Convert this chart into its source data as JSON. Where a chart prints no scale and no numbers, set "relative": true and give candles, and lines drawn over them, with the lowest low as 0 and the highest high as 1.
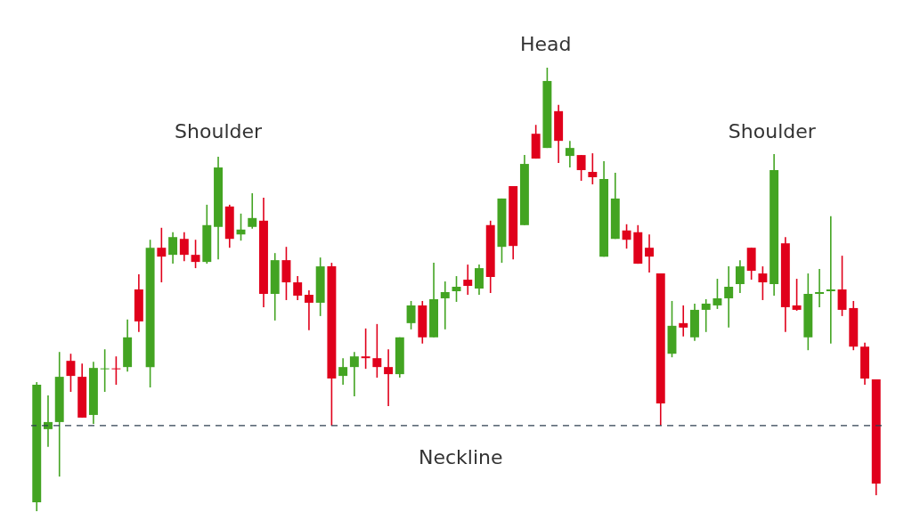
{
  "chart_data": {
    "type": "candlestick",
    "relative": true,
    "categories": [
      null,
      null,
      null,
      null,
      null,
      null,
      null,
      null,
      null,
      null,
      null,
      null,
      null,
      null,
      null,
      null,
      null,
      null,
      null,
      null,
      null,
      null,
      null,
      null,
      null,
      null,
      null,
      null,
      null,
      null,
      null,
      null,
      null,
      null,
      null,
      null,
      null,
      null,
      null,
      null,
      null,
      null,
      null,
      null,
      null,
      null,
      null,
      null,
      null,
      null,
      null,
      null,
      null,
      null,
      null,
      null,
      null,
      null,
      null,
      null,
      null,
      null,
      null,
      null,
      null,
      null,
      null,
      null,
      null,
      null,
      null,
      null,
      null,
      null,
      null
    ],
    "ohlc": [
      [
        0.02,
        0.291,
        0,
        0.285
      ],
      [
        0.185,
        0.261,
        0.145,
        0.201
      ],
      [
        0.201,
        0.359,
        0.078,
        0.303
      ],
      [
        0.339,
        0.355,
        0.269,
        0.305
      ],
      [
        0.303,
        0.333,
        0.211,
        0.211
      ],
      [
        0.217,
        0.337,
        0.197,
        0.323
      ],
      [
        0.32,
        0.365,
        0.269,
        0.322
      ],
      [
        0.322,
        0.349,
        0.285,
        0.32
      ],
      [
        0.325,
        0.432,
        0.315,
        0.392
      ],
      [
        0.5,
        0.534,
        0.404,
        0.428
      ],
      [
        0.325,
        0.612,
        0.279,
        0.594
      ],
      [
        0.594,
        0.639,
        0.516,
        0.574
      ],
      [
        0.578,
        0.629,
        0.558,
        0.618
      ],
      [
        0.614,
        0.629,
        0.564,
        0.578
      ],
      [
        0.578,
        0.612,
        0.548,
        0.562
      ],
      [
        0.562,
        0.691,
        0.558,
        0.645
      ],
      [
        0.641,
        0.799,
        0.568,
        0.775
      ],
      [
        0.687,
        0.691,
        0.594,
        0.614
      ],
      [
        0.624,
        0.671,
        0.61,
        0.635
      ],
      [
        0.641,
        0.717,
        0.637,
        0.661
      ],
      [
        0.655,
        0.707,
        0.46,
        0.49
      ],
      [
        0.49,
        0.582,
        0.43,
        0.566
      ],
      [
        0.566,
        0.596,
        0.476,
        0.516
      ],
      [
        0.516,
        0.53,
        0.476,
        0.486
      ],
      [
        0.488,
        0.498,
        0.408,
        0.47
      ],
      [
        0.47,
        0.572,
        0.44,
        0.552
      ],
      [
        0.552,
        0.56,
        0.193,
        0.299
      ],
      [
        0.305,
        0.345,
        0.285,
        0.325
      ],
      [
        0.325,
        0.359,
        0.259,
        0.349
      ],
      [
        0.349,
        0.412,
        0.321,
        0.345
      ],
      [
        0.345,
        0.422,
        0.301,
        0.325
      ],
      [
        0.325,
        0.365,
        0.237,
        0.309
      ],
      [
        0.309,
        0.392,
        0.301,
        0.392
      ],
      [
        0.424,
        0.474,
        0.41,
        0.464
      ],
      [
        0.464,
        0.474,
        0.378,
        0.392
      ],
      [
        0.392,
        0.56,
        0.392,
        0.478
      ],
      [
        0.48,
        0.518,
        0.41,
        0.494
      ],
      [
        0.496,
        0.53,
        0.472,
        0.506
      ],
      [
        0.522,
        0.556,
        0.488,
        0.508
      ],
      [
        0.502,
        0.556,
        0.488,
        0.548
      ],
      [
        0.645,
        0.655,
        0.492,
        0.528
      ],
      [
        0.596,
        0.705,
        0.56,
        0.705
      ],
      [
        0.733,
        0.733,
        0.568,
        0.598
      ],
      [
        0.645,
        0.803,
        0.645,
        0.783
      ],
      [
        0.851,
        0.871,
        0.795,
        0.795
      ],
      [
        0.819,
        1,
        0.819,
        0.97
      ],
      [
        0.902,
        0.916,
        0.785,
        0.835
      ],
      [
        0.801,
        0.835,
        0.775,
        0.819
      ],
      [
        0.803,
        0.803,
        0.745,
        0.769
      ],
      [
        0.765,
        0.807,
        0.737,
        0.753
      ],
      [
        0.574,
        0.789,
        0.574,
        0.749
      ],
      [
        0.614,
        0.763,
        0.614,
        0.705
      ],
      [
        0.633,
        0.647,
        0.592,
        0.612
      ],
      [
        0.629,
        0.645,
        0.558,
        0.558
      ],
      [
        0.594,
        0.624,
        0.538,
        0.574
      ],
      [
        0.536,
        0.536,
        0.193,
        0.243
      ],
      [
        0.355,
        0.474,
        0.347,
        0.418
      ],
      [
        0.424,
        0.464,
        0.394,
        0.414
      ],
      [
        0.392,
        0.468,
        0.384,
        0.454
      ],
      [
        0.454,
        0.478,
        0.404,
        0.468
      ],
      [
        0.464,
        0.524,
        0.456,
        0.48
      ],
      [
        0.48,
        0.552,
        0.414,
        0.506
      ],
      [
        0.512,
        0.566,
        0.492,
        0.552
      ],
      [
        0.594,
        0.594,
        0.522,
        0.542
      ],
      [
        0.536,
        0.552,
        0.476,
        0.516
      ],
      [
        0.512,
        0.805,
        0.486,
        0.769
      ],
      [
        0.604,
        0.618,
        0.404,
        0.46
      ],
      [
        0.464,
        0.524,
        0.452,
        0.454
      ],
      [
        0.392,
        0.536,
        0.363,
        0.49
      ],
      [
        0.49,
        0.546,
        0.46,
        0.494
      ],
      [
        0.496,
        0.665,
        0.378,
        0.5
      ],
      [
        0.5,
        0.576,
        0.44,
        0.454
      ],
      [
        0.458,
        0.474,
        0.363,
        0.371
      ],
      [
        0.371,
        0.38,
        0.285,
        0.299
      ],
      [
        0.297,
        0.297,
        0.036,
        0.062
      ]
    ],
    "colors": [
      "#43a422",
      "#43a422",
      "#43a422",
      "#e0001b",
      "#e0001b",
      "#43a422",
      "#43a422",
      "#e0001b",
      "#43a422",
      "#e0001b",
      "#43a422",
      "#e0001b",
      "#43a422",
      "#e0001b",
      "#e0001b",
      "#43a422",
      "#43a422",
      "#e0001b",
      "#43a422",
      "#43a422",
      "#e0001b",
      "#43a422",
      "#e0001b",
      "#e0001b",
      "#e0001b",
      "#43a422",
      "#e0001b",
      "#43a422",
      "#43a422",
      "#e0001b",
      "#e0001b",
      "#e0001b",
      "#43a422",
      "#43a422",
      "#e0001b",
      "#43a422",
      "#43a422",
      "#43a422",
      "#e0001b",
      "#43a422",
      "#e0001b",
      "#43a422",
      "#e0001b",
      "#43a422",
      "#e0001b",
      "#43a422",
      "#e0001b",
      "#43a422",
      "#e0001b",
      "#e0001b",
      "#43a422",
      "#43a422",
      "#e0001b",
      "#e0001b",
      "#e0001b",
      "#e0001b",
      "#43a422",
      "#e0001b",
      "#43a422",
      "#43a422",
      "#43a422",
      "#43a422",
      "#43a422",
      "#e0001b",
      "#e0001b",
      "#43a422",
      "#e0001b",
      "#e0001b",
      "#43a422",
      "#43a422",
      "#43a422",
      "#e0001b",
      "#e0001b",
      "#e0001b",
      "#e0001b"
    ],
    "ref_lines": [
      {
        "axis": "y",
        "value": 0.193,
        "label": "Neckline",
        "color": "#2d3e50",
        "line_style": "dashed"
      }
    ],
    "annotations": [
      "Shoulder",
      "Head",
      "Shoulder"
    ]
  }
}
